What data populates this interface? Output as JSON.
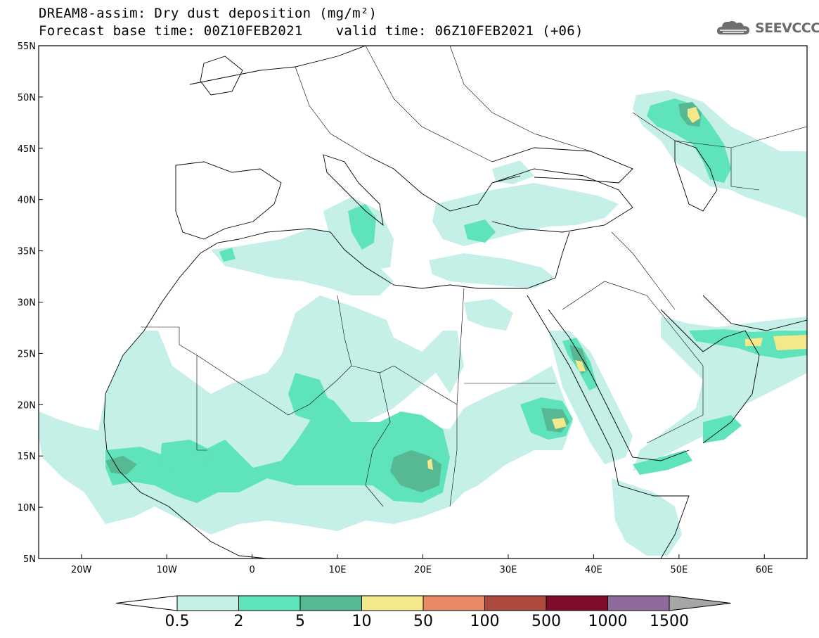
{
  "header": {
    "title_line1": "DREAM8-assim: Dry dust deposition (mg/m²)",
    "title_line2": "Forecast base time: 00Z10FEB2021    valid time: 06Z10FEB2021 (+06)"
  },
  "logo": {
    "text": "SEEVCCC",
    "icon": "cloud-icon"
  },
  "map": {
    "lon_range": [
      -25,
      65
    ],
    "lat_range": [
      5,
      55
    ],
    "lat_ticks": [
      {
        "value": 55,
        "label": "55N"
      },
      {
        "value": 50,
        "label": "50N"
      },
      {
        "value": 45,
        "label": "45N"
      },
      {
        "value": 40,
        "label": "40N"
      },
      {
        "value": 35,
        "label": "35N"
      },
      {
        "value": 30,
        "label": "30N"
      },
      {
        "value": 25,
        "label": "25N"
      },
      {
        "value": 20,
        "label": "20N"
      },
      {
        "value": 15,
        "label": "15N"
      },
      {
        "value": 10,
        "label": "10N"
      },
      {
        "value": 5,
        "label": "5N"
      }
    ],
    "lon_ticks": [
      {
        "value": -20,
        "label": "20W"
      },
      {
        "value": -10,
        "label": "10W"
      },
      {
        "value": 0,
        "label": "0"
      },
      {
        "value": 10,
        "label": "10E"
      },
      {
        "value": 20,
        "label": "20E"
      },
      {
        "value": 30,
        "label": "30E"
      },
      {
        "value": 40,
        "label": "40E"
      },
      {
        "value": 50,
        "label": "50E"
      },
      {
        "value": 60,
        "label": "60E"
      }
    ]
  },
  "colorbar": {
    "levels": [
      "0.5",
      "2",
      "5",
      "10",
      "50",
      "100",
      "500",
      "1000",
      "1500"
    ],
    "colors": [
      "#c4f0e8",
      "#5ee3bb",
      "#56b993",
      "#f3e88a",
      "#e88a66",
      "#ad4a3d",
      "#7f0c2a",
      "#8e6b9c",
      "#a6a6a6"
    ],
    "low_end_color": "#ffffff"
  },
  "palette": {
    "land_outline": "#000000",
    "frame": "#000000",
    "background": "#ffffff"
  }
}
